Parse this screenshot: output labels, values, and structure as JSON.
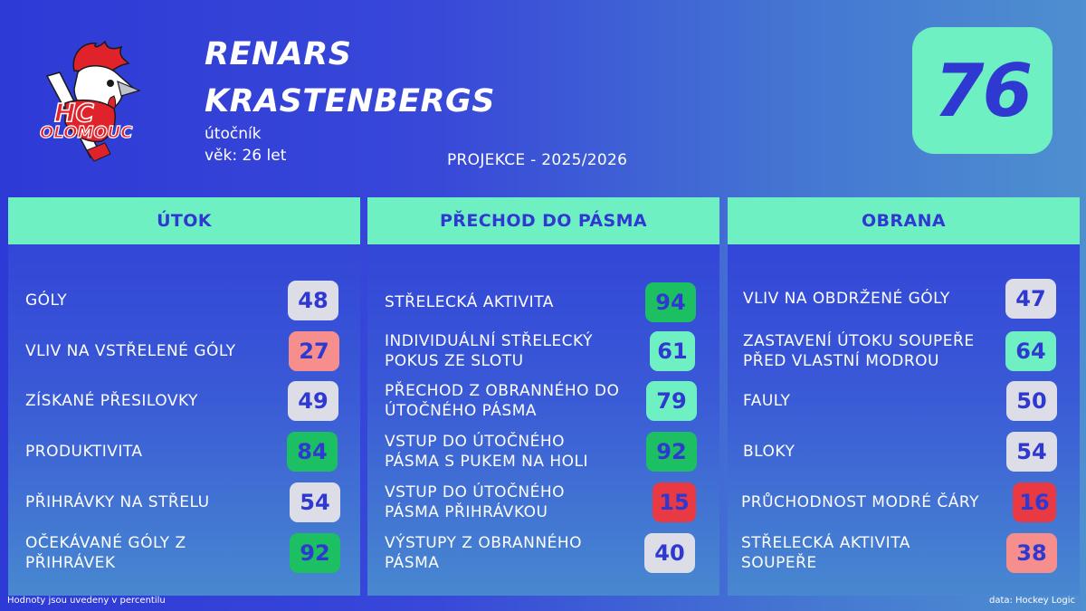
{
  "player": {
    "name_line1": "RENARS",
    "name_line2": "KRASTENBERGS",
    "position": "útočník",
    "age": "věk: 26 let"
  },
  "team": {
    "logo_line1": "HC",
    "logo_line2": "OLOMOUC"
  },
  "projection": "PROJEKCE - 2025/2026",
  "rating": "76",
  "colors": {
    "accent_mint": "#6ff0c3",
    "text_blue": "#2f39d2",
    "background_left": "#2e3ad6",
    "background_right": "#4e8fd0",
    "score_grey": "#dcdde6",
    "score_pink": "#f58e8c",
    "score_green": "#1dbf63",
    "score_red": "#e93a43"
  },
  "panels": [
    {
      "title": "ÚTOK",
      "metrics": [
        {
          "label": "GÓLY",
          "value": "48",
          "color": "grey"
        },
        {
          "label": "VLIV NA VSTŘELENÉ GÓLY",
          "value": "27",
          "color": "pink"
        },
        {
          "label": "ZÍSKANÉ PŘESILOVKY",
          "value": "49",
          "color": "grey"
        },
        {
          "label": "PRODUKTIVITA",
          "value": "84",
          "color": "green"
        },
        {
          "label": "PŘIHRÁVKY NA STŘELU",
          "value": "54",
          "color": "grey"
        },
        {
          "label": "OČEKÁVANÉ GÓLY Z PŘIHRÁVEK",
          "value": "92",
          "color": "green"
        }
      ]
    },
    {
      "title": "PŘECHOD DO PÁSMA",
      "metrics": [
        {
          "label": "STŘELECKÁ AKTIVITA",
          "value": "94",
          "color": "green"
        },
        {
          "label": "INDIVIDUÁLNÍ STŘELECKÝ POKUS ZE SLOTU",
          "value": "61",
          "color": "mint"
        },
        {
          "label": "PŘECHOD Z OBRANNÉHO DO ÚTOČNÉHO PÁSMA",
          "value": "79",
          "color": "mint"
        },
        {
          "label": "VSTUP DO ÚTOČNÉHO PÁSMA S PUKEM NA HOLI",
          "value": "92",
          "color": "green"
        },
        {
          "label": "VSTUP DO ÚTOČNÉHO PÁSMA PŘIHRÁVKOU",
          "value": "15",
          "color": "red"
        },
        {
          "label": "VÝSTUPY Z OBRANNÉHO PÁSMA",
          "value": "40",
          "color": "grey"
        }
      ]
    },
    {
      "title": "OBRANA",
      "metrics": [
        {
          "label": "VLIV NA OBDRŽENÉ GÓLY",
          "value": "47",
          "color": "grey"
        },
        {
          "label": "ZASTAVENÍ ÚTOKU SOUPEŘE PŘED VLASTNÍ MODROU",
          "value": "64",
          "color": "mint"
        },
        {
          "label": "FAULY",
          "value": "50",
          "color": "grey"
        },
        {
          "label": "BLOKY",
          "value": "54",
          "color": "grey"
        },
        {
          "label": "PRŮCHODNOST MODRÉ ČÁRY",
          "value": "16",
          "color": "red"
        },
        {
          "label": "STŘELECKÁ AKTIVITA SOUPEŘE",
          "value": "38",
          "color": "pink"
        }
      ]
    }
  ],
  "footnote": "Hodnoty jsou uvedeny v percentilu",
  "source": "data: Hockey Logic"
}
